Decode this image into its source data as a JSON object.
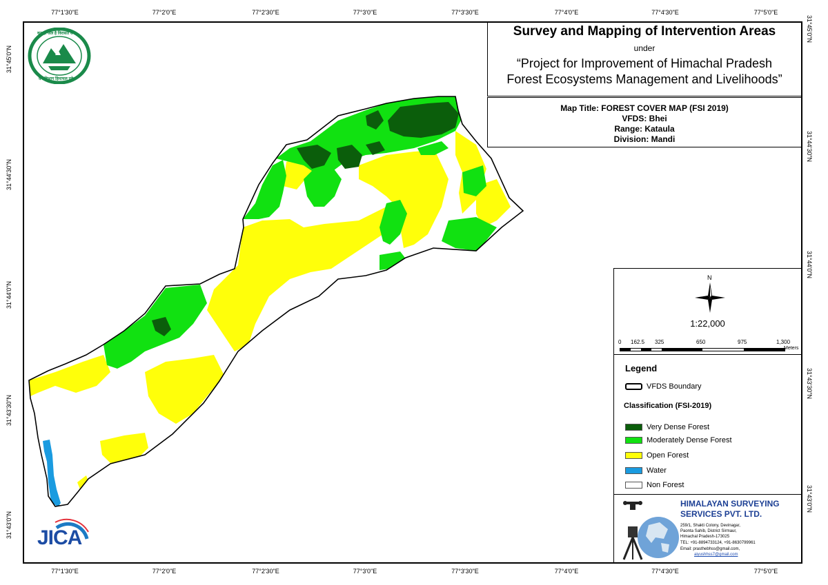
{
  "grid": {
    "top_ticks": [
      "77°1'30\"E",
      "77°2'0\"E",
      "77°2'30\"E",
      "77°3'0\"E",
      "77°3'30\"E",
      "77°4'0\"E",
      "77°4'30\"E",
      "77°5'0\"E"
    ],
    "bottom_ticks": [
      "77°1'30\"E",
      "77°2'0\"E",
      "77°2'30\"E",
      "77°3'0\"E",
      "77°3'30\"E",
      "77°4'0\"E",
      "77°4'30\"E",
      "77°5'0\"E"
    ],
    "left_ticks": [
      "31°45'0\"N",
      "31°44'30\"N",
      "31°44'0\"N",
      "31°43'30\"N",
      "31°43'0\"N"
    ],
    "right_ticks": [
      "31°45'0\"N",
      "31°44'30\"N",
      "31°44'0\"N",
      "31°43'30\"N",
      "31°43'0\"N"
    ]
  },
  "title_block": {
    "heading": "Survey and Mapping of Intervention Areas",
    "under": "under",
    "project_line1": "“Project for Improvement of Himachal Pradesh",
    "project_line2": "Forest Ecosystems Management and Livelihoods”"
  },
  "map_info": {
    "map_title": "Map Title: FOREST COVER MAP (FSI 2019)",
    "vfds": "VFDS: Bhei",
    "range": "Range: Kataula",
    "division": "Division: Mandi"
  },
  "north_label": "N",
  "scale": {
    "ratio": "1:22,000",
    "labels": [
      "0",
      "162.5",
      "325",
      "650",
      "975",
      "1,300"
    ],
    "unit": "Meters"
  },
  "legend": {
    "title": "Legend",
    "boundary_label": "VFDS Boundary",
    "classification_title": "Classification (FSI-2019)",
    "classes": [
      {
        "label": "Very Dense Forest",
        "color": "#0b5e0b"
      },
      {
        "label": "Moderately Dense Forest",
        "color": "#11e111"
      },
      {
        "label": "Open Forest",
        "color": "#ffff0a"
      },
      {
        "label": "Water",
        "color": "#1a9be0"
      },
      {
        "label": "Non Forest",
        "color": "#ffffff"
      }
    ]
  },
  "company": {
    "name_line1": "HIMALAYAN SURVEYING",
    "name_line2": "SERVICES PVT. LTD.",
    "address1": "259/1, Shakti Colony, Devinagar,",
    "address2": "Paonta Sahib, District Sirmaur,",
    "address3": "Himachal Pradesh-173025",
    "tel": "TEL: +91-8894733124, +91-8630799961",
    "email1": "Email: prasthebhss@gmail.com,",
    "email2": "aiyushhss7@gmail.com"
  },
  "logos": {
    "forest_dept_top": "वन ही जल है विरासत वन",
    "forest_dept_bottom": "वन विभाग हिमाचल प्रदेश",
    "jica": "JICA"
  }
}
